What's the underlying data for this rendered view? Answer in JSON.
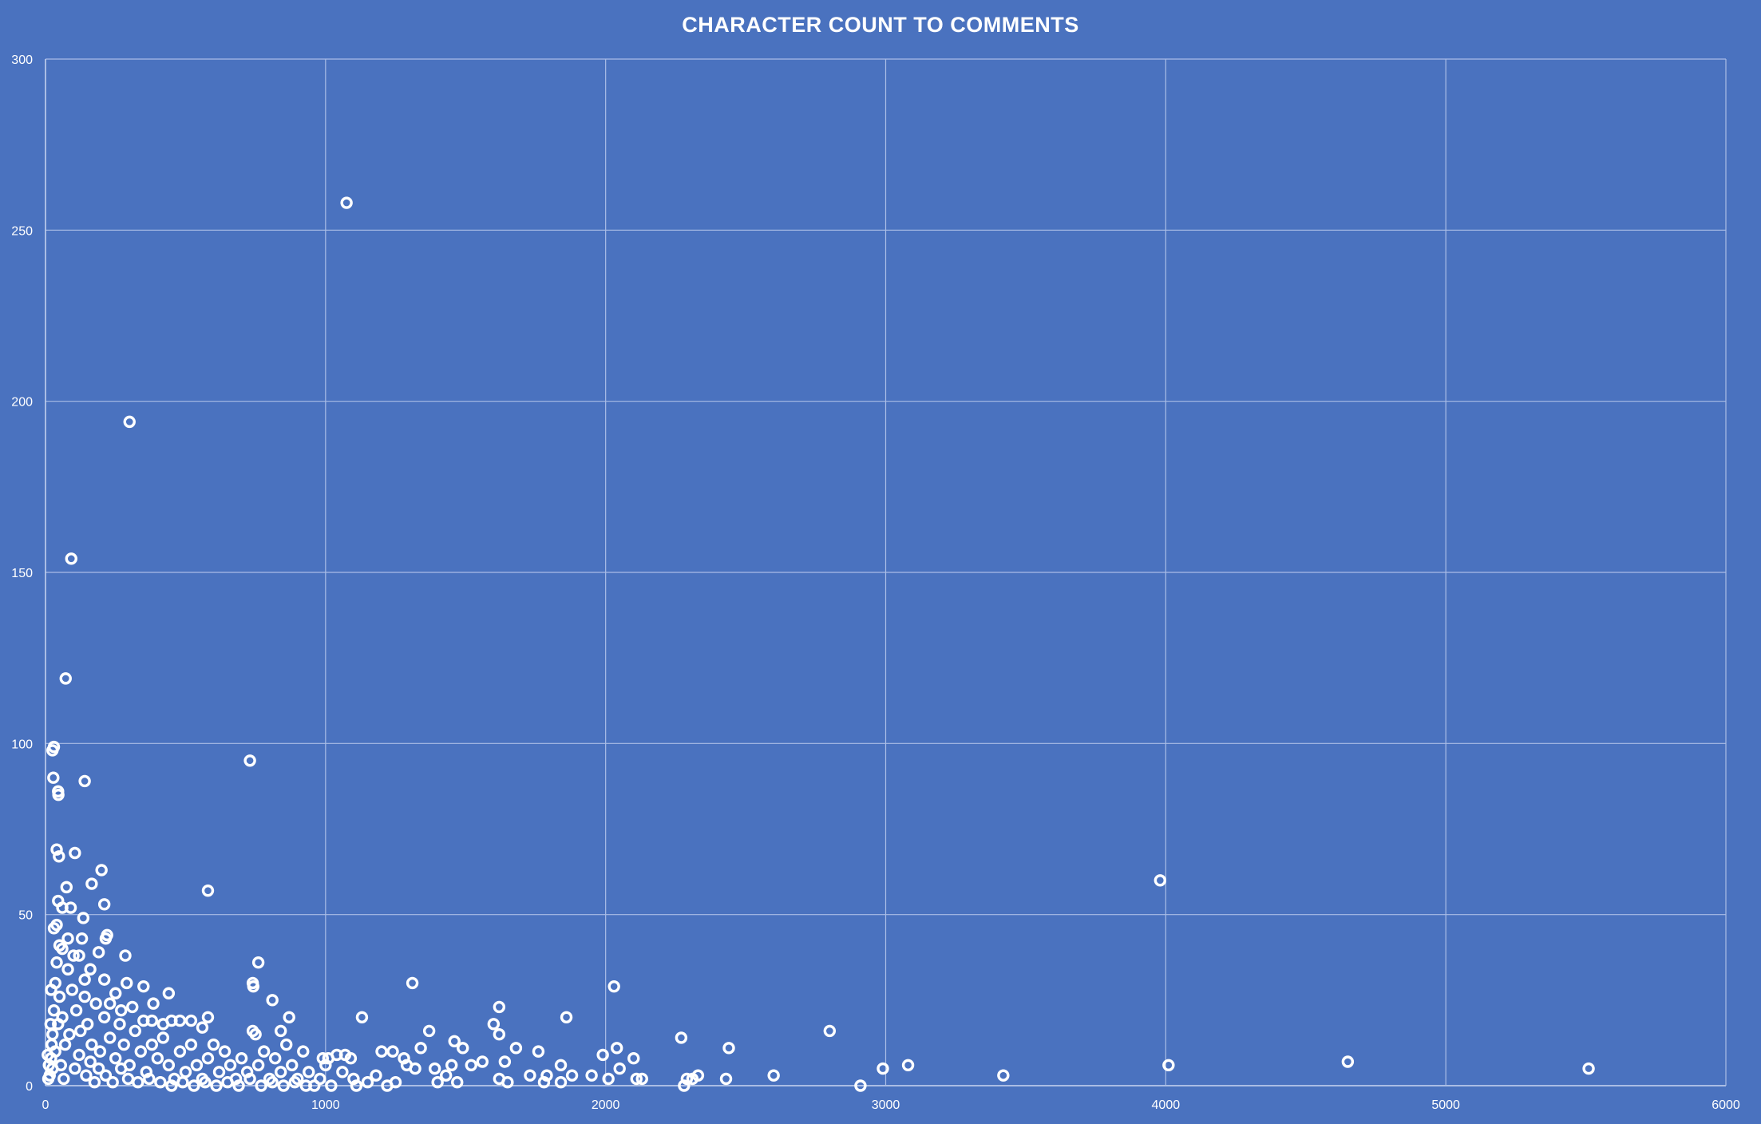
{
  "chart_data": {
    "type": "scatter",
    "title": "CHARACTER COUNT TO COMMENTS",
    "xlabel": "",
    "ylabel": "",
    "xlim": [
      0,
      6000
    ],
    "ylim": [
      0,
      300
    ],
    "xticks": [
      0,
      1000,
      2000,
      3000,
      4000,
      5000,
      6000
    ],
    "yticks": [
      0,
      50,
      100,
      150,
      200,
      250,
      300
    ],
    "grid": true,
    "legend": "none",
    "colors": {
      "background": "#4a72bf",
      "marker": "#ffffff",
      "gridline": "#aabde6"
    },
    "series": [
      {
        "points": [
          [
            1075,
            258
          ],
          [
            300,
            194
          ],
          [
            92,
            154
          ],
          [
            72,
            119
          ],
          [
            30,
            99
          ],
          [
            25,
            98
          ],
          [
            28,
            90
          ],
          [
            140,
            89
          ],
          [
            45,
            86
          ],
          [
            46,
            85
          ],
          [
            730,
            95
          ],
          [
            3980,
            60
          ],
          [
            580,
            57
          ],
          [
            40,
            69
          ],
          [
            48,
            67
          ],
          [
            105,
            68
          ],
          [
            200,
            63
          ],
          [
            165,
            59
          ],
          [
            210,
            53
          ],
          [
            75,
            58
          ],
          [
            30,
            46
          ],
          [
            45,
            54
          ],
          [
            60,
            52
          ],
          [
            90,
            52
          ],
          [
            135,
            49
          ],
          [
            40,
            47
          ],
          [
            80,
            43
          ],
          [
            130,
            43
          ],
          [
            220,
            44
          ],
          [
            215,
            43
          ],
          [
            285,
            38
          ],
          [
            50,
            41
          ],
          [
            100,
            38
          ],
          [
            190,
            39
          ],
          [
            760,
            36
          ],
          [
            1310,
            30
          ],
          [
            2030,
            29
          ],
          [
            740,
            30
          ],
          [
            742,
            29
          ],
          [
            350,
            29
          ],
          [
            440,
            27
          ],
          [
            810,
            25
          ],
          [
            210,
            31
          ],
          [
            250,
            27
          ],
          [
            140,
            31
          ],
          [
            1620,
            23
          ],
          [
            1860,
            20
          ],
          [
            1130,
            20
          ],
          [
            870,
            20
          ],
          [
            385,
            24
          ],
          [
            310,
            23
          ],
          [
            2800,
            16
          ],
          [
            2270,
            14
          ],
          [
            1370,
            16
          ],
          [
            1600,
            18
          ],
          [
            1620,
            15
          ],
          [
            840,
            16
          ],
          [
            740,
            16
          ],
          [
            750,
            15
          ],
          [
            580,
            20
          ],
          [
            560,
            17
          ],
          [
            480,
            19
          ],
          [
            520,
            19
          ],
          [
            420,
            18
          ],
          [
            380,
            19
          ],
          [
            350,
            19
          ],
          [
            450,
            19
          ],
          [
            1460,
            13
          ],
          [
            1490,
            11
          ],
          [
            1680,
            11
          ],
          [
            2040,
            11
          ],
          [
            2440,
            11
          ],
          [
            1760,
            10
          ],
          [
            1990,
            9
          ],
          [
            2100,
            8
          ],
          [
            1640,
            7
          ],
          [
            1560,
            7
          ],
          [
            1520,
            6
          ],
          [
            1240,
            10
          ],
          [
            1280,
            8
          ],
          [
            1200,
            10
          ],
          [
            1040,
            9
          ],
          [
            1070,
            9
          ],
          [
            1090,
            8
          ],
          [
            990,
            8
          ],
          [
            1010,
            8
          ],
          [
            1340,
            11
          ],
          [
            1290,
            6
          ],
          [
            1320,
            5
          ],
          [
            1390,
            5
          ],
          [
            1430,
            3
          ],
          [
            1450,
            6
          ],
          [
            1840,
            6
          ],
          [
            1880,
            3
          ],
          [
            1950,
            3
          ],
          [
            2050,
            5
          ],
          [
            2110,
            2
          ],
          [
            2130,
            2
          ],
          [
            2010,
            2
          ],
          [
            1730,
            3
          ],
          [
            1790,
            3
          ],
          [
            1780,
            1
          ],
          [
            1840,
            1
          ],
          [
            1620,
            2
          ],
          [
            1650,
            1
          ],
          [
            2290,
            2
          ],
          [
            2280,
            0
          ],
          [
            2330,
            3
          ],
          [
            2310,
            2
          ],
          [
            2430,
            2
          ],
          [
            2600,
            3
          ],
          [
            2910,
            0
          ],
          [
            2990,
            5
          ],
          [
            3080,
            6
          ],
          [
            3420,
            3
          ],
          [
            4010,
            6
          ],
          [
            4650,
            7
          ],
          [
            5510,
            5
          ],
          [
            20,
            8
          ],
          [
            25,
            15
          ],
          [
            30,
            22
          ],
          [
            35,
            30
          ],
          [
            40,
            36
          ],
          [
            50,
            26
          ],
          [
            60,
            20
          ],
          [
            70,
            12
          ],
          [
            80,
            34
          ],
          [
            95,
            28
          ],
          [
            110,
            22
          ],
          [
            125,
            16
          ],
          [
            140,
            26
          ],
          [
            150,
            18
          ],
          [
            165,
            12
          ],
          [
            180,
            24
          ],
          [
            195,
            10
          ],
          [
            210,
            20
          ],
          [
            230,
            14
          ],
          [
            250,
            8
          ],
          [
            265,
            18
          ],
          [
            280,
            12
          ],
          [
            300,
            6
          ],
          [
            320,
            16
          ],
          [
            340,
            10
          ],
          [
            360,
            4
          ],
          [
            380,
            12
          ],
          [
            400,
            8
          ],
          [
            420,
            14
          ],
          [
            440,
            6
          ],
          [
            460,
            2
          ],
          [
            480,
            10
          ],
          [
            500,
            4
          ],
          [
            520,
            12
          ],
          [
            540,
            6
          ],
          [
            560,
            2
          ],
          [
            580,
            8
          ],
          [
            600,
            12
          ],
          [
            620,
            4
          ],
          [
            640,
            10
          ],
          [
            660,
            6
          ],
          [
            680,
            2
          ],
          [
            700,
            8
          ],
          [
            720,
            4
          ],
          [
            760,
            6
          ],
          [
            780,
            10
          ],
          [
            800,
            2
          ],
          [
            820,
            8
          ],
          [
            840,
            4
          ],
          [
            860,
            12
          ],
          [
            880,
            6
          ],
          [
            900,
            2
          ],
          [
            920,
            10
          ],
          [
            940,
            4
          ],
          [
            960,
            0
          ],
          [
            980,
            2
          ],
          [
            1000,
            6
          ],
          [
            1020,
            0
          ],
          [
            1060,
            4
          ],
          [
            1100,
            2
          ],
          [
            1150,
            1
          ],
          [
            1180,
            3
          ],
          [
            1220,
            0
          ],
          [
            1250,
            1
          ],
          [
            1400,
            1
          ],
          [
            1470,
            1
          ],
          [
            15,
            3
          ],
          [
            25,
            5
          ],
          [
            35,
            10
          ],
          [
            45,
            18
          ],
          [
            55,
            6
          ],
          [
            65,
            2
          ],
          [
            85,
            15
          ],
          [
            105,
            5
          ],
          [
            120,
            9
          ],
          [
            145,
            3
          ],
          [
            160,
            7
          ],
          [
            175,
            1
          ],
          [
            190,
            5
          ],
          [
            215,
            3
          ],
          [
            240,
            1
          ],
          [
            270,
            5
          ],
          [
            295,
            2
          ],
          [
            330,
            1
          ],
          [
            370,
            2
          ],
          [
            410,
            1
          ],
          [
            450,
            0
          ],
          [
            490,
            1
          ],
          [
            530,
            0
          ],
          [
            570,
            1
          ],
          [
            610,
            0
          ],
          [
            650,
            1
          ],
          [
            690,
            0
          ],
          [
            730,
            2
          ],
          [
            770,
            0
          ],
          [
            810,
            1
          ],
          [
            850,
            0
          ],
          [
            890,
            1
          ],
          [
            930,
            0
          ],
          [
            1110,
            0
          ],
          [
            270,
            22
          ],
          [
            290,
            30
          ],
          [
            230,
            24
          ],
          [
            160,
            34
          ],
          [
            120,
            38
          ],
          [
            60,
            40
          ],
          [
            20,
            28
          ],
          [
            18,
            18
          ],
          [
            22,
            12
          ],
          [
            12,
            6
          ],
          [
            10,
            2
          ],
          [
            8,
            9
          ]
        ]
      }
    ]
  }
}
